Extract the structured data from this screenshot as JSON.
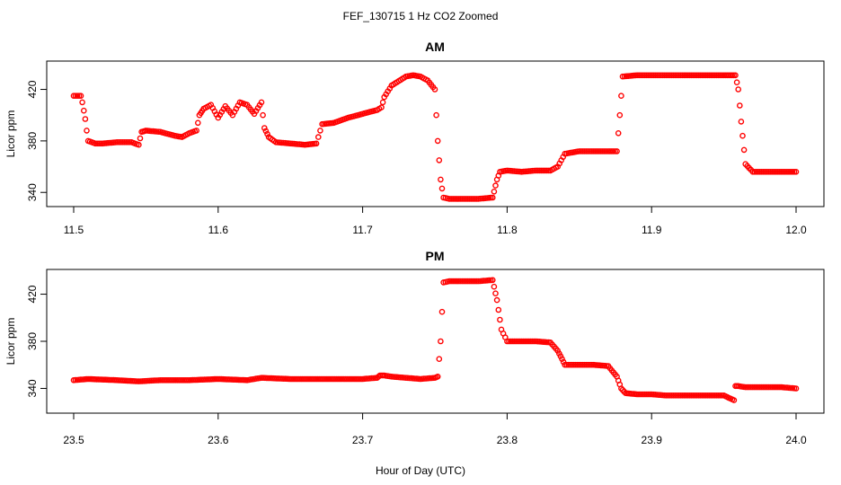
{
  "figure": {
    "title": "FEF_130715  1 Hz CO2 Zoomed",
    "xlabel": "Hour of Day (UTC)"
  },
  "colors": {
    "points": "#ff0000",
    "axes": "#000000"
  },
  "chart_data": [
    {
      "type": "scatter",
      "title": "AM",
      "xlabel": "",
      "ylabel": "Licor ppm",
      "xlim": [
        11.5,
        12.0
      ],
      "ylim": [
        329,
        442
      ],
      "xticks": [
        "11.5",
        "11.6",
        "11.7",
        "11.8",
        "11.9",
        "12.0"
      ],
      "xtick_values": [
        11.5,
        11.6,
        11.7,
        11.8,
        11.9,
        12.0
      ],
      "yticks": [
        "340",
        "380",
        "420"
      ],
      "ytick_values": [
        340,
        380,
        420
      ],
      "marker": "open-circle",
      "series": [
        {
          "x": [
            11.5,
            11.505,
            11.506,
            11.508,
            11.509,
            11.51,
            11.515,
            11.52,
            11.53,
            11.54,
            11.545,
            11.547,
            11.55,
            11.56,
            11.57,
            11.575,
            11.58,
            11.585,
            11.587,
            11.59,
            11.595,
            11.6,
            11.605,
            11.61,
            11.615,
            11.62,
            11.625,
            11.63,
            11.632,
            11.635,
            11.64,
            11.65,
            11.66,
            11.668,
            11.672,
            11.68,
            11.69,
            11.7,
            11.71,
            11.713,
            11.715,
            11.72,
            11.73,
            11.735,
            11.74,
            11.745,
            11.75,
            11.752,
            11.754,
            11.756,
            11.76,
            11.77,
            11.78,
            11.79,
            11.793,
            11.795,
            11.8,
            11.81,
            11.82,
            11.83,
            11.835,
            11.84,
            11.85,
            11.86,
            11.87,
            11.876,
            11.878,
            11.88,
            11.89,
            11.9,
            11.91,
            11.92,
            11.93,
            11.94,
            11.95,
            11.958,
            11.96,
            11.962,
            11.965,
            11.97,
            11.98,
            11.99,
            12.0
          ],
          "y": [
            415,
            415,
            410,
            397,
            388,
            380,
            378,
            378,
            379,
            379,
            377,
            387,
            388,
            387,
            384,
            383,
            386,
            388,
            400,
            405,
            408,
            398,
            407,
            400,
            410,
            408,
            401,
            410,
            390,
            383,
            379,
            378,
            377,
            378,
            393,
            394,
            398,
            401,
            404,
            406,
            414,
            423,
            430,
            431,
            430,
            427,
            420,
            380,
            350,
            336,
            335,
            335,
            335,
            336,
            350,
            356,
            357,
            356,
            357,
            357,
            360,
            370,
            372,
            372,
            372,
            372,
            400,
            430,
            431,
            431,
            431,
            431,
            431,
            431,
            431,
            431,
            420,
            395,
            362,
            356,
            356,
            356,
            356
          ]
        }
      ]
    },
    {
      "type": "scatter",
      "title": "PM",
      "xlabel": "",
      "ylabel": "Licor ppm",
      "xlim": [
        23.5,
        24.0
      ],
      "ylim": [
        319,
        441
      ],
      "xticks": [
        "23.5",
        "23.6",
        "23.7",
        "23.8",
        "23.9",
        "24.0"
      ],
      "xtick_values": [
        23.5,
        23.6,
        23.7,
        23.8,
        23.9,
        24.0
      ],
      "yticks": [
        "340",
        "380",
        "420"
      ],
      "ytick_values": [
        340,
        380,
        420
      ],
      "marker": "open-circle",
      "series": [
        {
          "x": [
            23.5,
            23.51,
            23.53,
            23.545,
            23.56,
            23.58,
            23.6,
            23.62,
            23.63,
            23.65,
            23.67,
            23.7,
            23.71,
            23.712,
            23.715,
            23.72,
            23.73,
            23.74,
            23.75,
            23.752,
            23.754,
            23.756,
            23.76,
            23.77,
            23.78,
            23.79,
            23.793,
            23.796,
            23.8,
            23.81,
            23.82,
            23.83,
            23.835,
            23.838,
            23.84,
            23.85,
            23.86,
            23.87,
            23.876,
            23.879,
            23.882,
            23.89,
            23.9,
            23.91,
            23.92,
            23.93,
            23.94,
            23.95,
            23.957,
            23.958,
            23.96,
            23.965,
            23.97,
            23.98,
            23.99,
            24.0
          ],
          "y": [
            347,
            348,
            347,
            346,
            347,
            347,
            348,
            347,
            349,
            348,
            348,
            348,
            349,
            351,
            351,
            350,
            349,
            348,
            349,
            350,
            380,
            430,
            431,
            431,
            431,
            432,
            415,
            390,
            380,
            380,
            380,
            379,
            372,
            365,
            360,
            360,
            360,
            359,
            350,
            340,
            336,
            335,
            335,
            334,
            334,
            334,
            334,
            334,
            330,
            342,
            342,
            341,
            341,
            341,
            341,
            340
          ]
        }
      ]
    }
  ]
}
